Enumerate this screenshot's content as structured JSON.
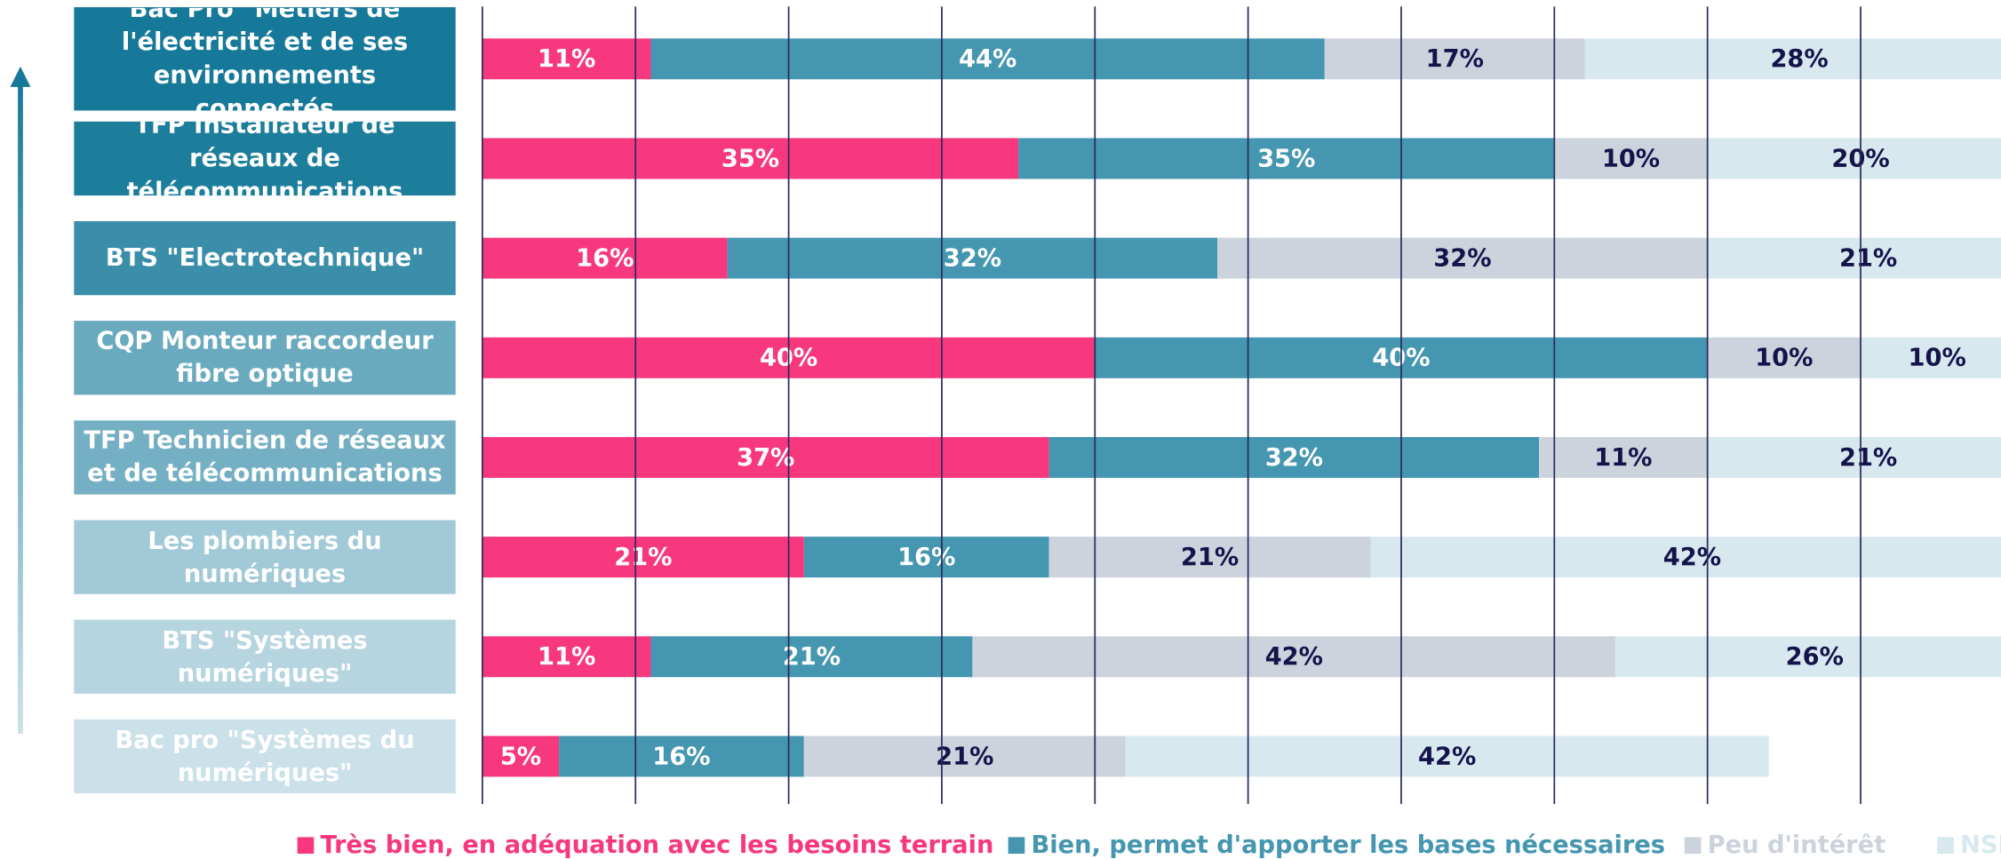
{
  "chart_data": {
    "type": "stacked-bar-horizontal",
    "categories": [
      "Bac Pro \"Métiers de l'électricité et de ses environnements connectés",
      "TFP Installateur de réseaux de télécommunications",
      "BTS \"Electrotechnique\"",
      "CQP Monteur raccordeur fibre optique",
      "TFP Technicien de réseaux et de télécommunications",
      "Les plombiers du numériques",
      "BTS \"Systèmes numériques\"",
      "Bac pro \"Systèmes du numériques\""
    ],
    "category_colors": [
      "#17799a",
      "#1d7e9c",
      "#3a8ea9",
      "#6aaabf",
      "#74afc3",
      "#a1c9d7",
      "#b6d5e0",
      "#cbe1e9"
    ],
    "series": [
      {
        "name": "Très bien, en adéquation avec les besoins terrain",
        "color": "#f7387f",
        "label_color": "#ffffff",
        "values": [
          11,
          35,
          16,
          40,
          37,
          21,
          11,
          5
        ],
        "value_labels": [
          "11%",
          "35%",
          "16%",
          "40%",
          "37%",
          "21%",
          "11%",
          "5%"
        ]
      },
      {
        "name": "Bien, permet d'apporter les bases nécessaires",
        "color": "#4596b0",
        "label_color": "#ffffff",
        "values": [
          44,
          35,
          32,
          40,
          32,
          16,
          21,
          16
        ],
        "value_labels": [
          "44%",
          "35%",
          "32%",
          "40%",
          "32%",
          "16%",
          "21%",
          "16%"
        ]
      },
      {
        "name": "Peu d'intérêt",
        "color": "#ccd3dd",
        "label_color": "#14144a",
        "values": [
          17,
          10,
          32,
          10,
          11,
          21,
          42,
          21
        ],
        "value_labels": [
          "17%",
          "10%",
          "32%",
          "10%",
          "11%",
          "21%",
          "42%",
          "21%"
        ]
      },
      {
        "name": "NSP",
        "color": "#d8e8ef",
        "label_color": "#14144a",
        "values": [
          28,
          20,
          21,
          10,
          21,
          42,
          26,
          42
        ],
        "value_labels": [
          "28%",
          "20%",
          "21%",
          "10%",
          "21%",
          "42%",
          "26%",
          "42%"
        ]
      }
    ],
    "xlim": [
      0,
      100
    ],
    "xticks": [
      0,
      10,
      20,
      30,
      40,
      50,
      60,
      70,
      80,
      90,
      100
    ],
    "grid": true
  }
}
